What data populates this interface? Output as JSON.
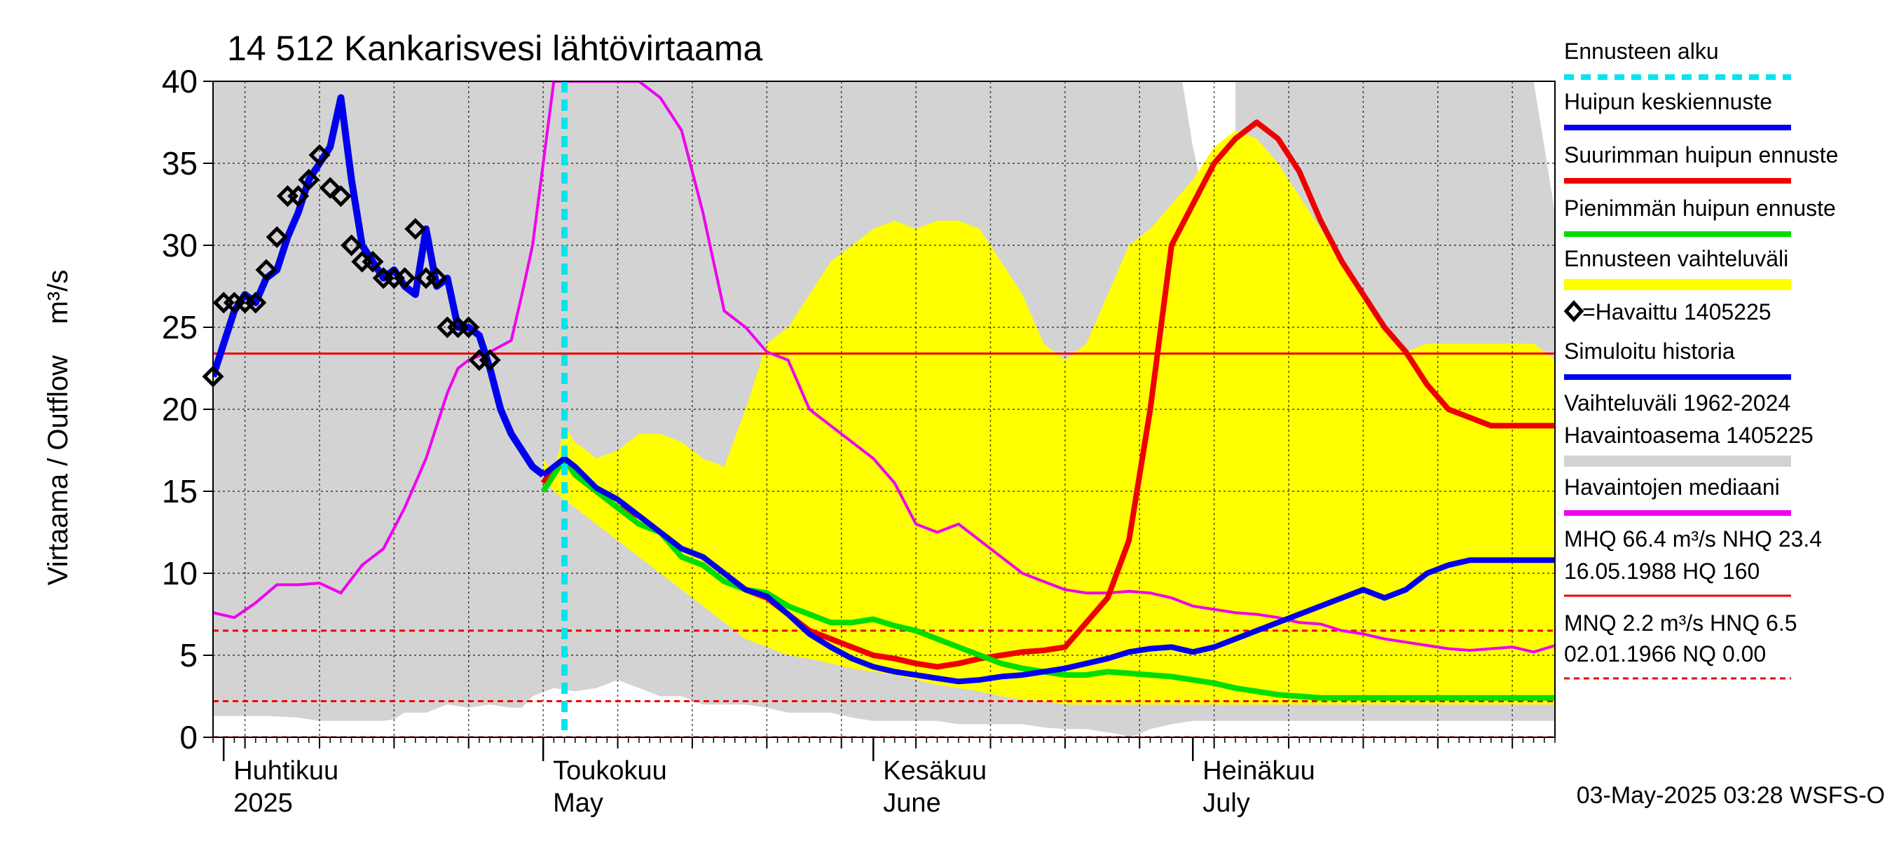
{
  "chart_data": {
    "type": "line",
    "title": "14 512 Kankarisvesi lähtövirtaama",
    "ylabel": "Virtaama / Outflow    m³/s",
    "ylim": [
      0,
      40
    ],
    "yticks": [
      0,
      5,
      10,
      15,
      20,
      25,
      30,
      35,
      40
    ],
    "x_start": "2025-03-31",
    "x_end": "2025-08-04",
    "month_labels": [
      {
        "date": "2025-04-01",
        "fi": "Huhtikuu",
        "en": "2025"
      },
      {
        "date": "2025-05-01",
        "fi": "Toukokuu",
        "en": "May"
      },
      {
        "date": "2025-06-01",
        "fi": "Kesäkuu",
        "en": "June"
      },
      {
        "date": "2025-07-01",
        "fi": "Heinäkuu",
        "en": "July"
      }
    ],
    "forecast_start": "2025-05-03",
    "timestamp": "03-May-2025 03:28 WSFS-O",
    "colors": {
      "forecast_start": "#00e5ee",
      "mean_forecast": "#0000ee",
      "max_forecast": "#ee0000",
      "min_forecast": "#00dd00",
      "forecast_range": "#ffff00",
      "simulated": "#0000ee",
      "hist_range": "#d3d3d3",
      "median": "#ee00ee",
      "ref_line": "#ee0000"
    },
    "legend": {
      "forecast_start": "Ennusteen alku",
      "mean_forecast": "Huipun keskiennuste",
      "max_forecast": "Suurimman huipun ennuste",
      "min_forecast": "Pienimmän huipun ennuste",
      "forecast_range": "Ennusteen vaihteluväli",
      "observed": "=Havaittu 1405225",
      "simulated": "Simuloitu historia",
      "hist_range_1": "Vaihteluväli 1962-2024",
      "hist_range_2": " Havaintoasema 1405225",
      "median": "Havaintojen mediaani",
      "mhq_1": "MHQ 66.4 m³/s NHQ 23.4",
      "mhq_2": "16.05.1988 HQ  160",
      "mnq_1": "MNQ  2.2 m³/s HNQ  6.5",
      "mnq_2": "02.01.1966 NQ 0.00"
    },
    "reference_lines": [
      {
        "name": "NHQ",
        "value": 23.4,
        "style": "solid"
      },
      {
        "name": "HNQ",
        "value": 6.5,
        "style": "dashed"
      },
      {
        "name": "MNQ",
        "value": 2.2,
        "style": "dashed"
      },
      {
        "name": "NQ",
        "value": 0.0,
        "style": "dashed"
      }
    ],
    "series": {
      "hist_range": {
        "x": [
          0,
          2,
          5,
          8,
          10,
          12,
          15,
          16,
          17,
          18,
          20,
          22,
          24,
          26,
          28,
          29,
          30,
          32,
          34,
          36,
          38,
          40,
          42,
          44,
          46,
          48,
          50,
          52,
          54,
          56,
          58,
          60,
          62,
          64,
          66,
          68,
          70,
          72,
          74,
          76,
          78,
          80,
          82,
          84,
          85,
          86,
          87,
          88,
          90,
          92,
          94,
          96,
          98,
          100,
          102,
          104,
          106,
          108,
          110,
          112,
          113,
          114,
          115,
          116,
          118,
          120,
          122,
          124,
          126
        ],
        "upper": [
          40,
          40,
          40,
          40,
          40,
          40,
          40,
          40,
          40,
          40,
          40,
          40,
          40,
          40,
          40,
          40,
          40,
          40,
          40,
          40,
          40,
          40,
          40,
          40,
          40,
          40,
          40,
          40,
          40,
          40,
          40,
          40,
          40,
          40,
          40,
          40,
          40,
          40,
          40,
          40,
          40,
          40,
          40,
          40,
          40,
          40,
          40,
          40,
          40,
          40,
          40,
          40,
          40,
          40,
          40,
          40,
          40,
          40,
          40,
          40,
          40,
          40,
          40,
          40,
          40,
          40,
          40,
          40,
          32
        ],
        "lower": [
          1.3,
          1.3,
          1.3,
          1.2,
          1.0,
          1.0,
          1.0,
          1.0,
          1.1,
          1.5,
          1.5,
          2.0,
          1.8,
          2.0,
          1.8,
          1.8,
          2.5,
          3.0,
          2.8,
          3.0,
          3.5,
          3.0,
          2.5,
          2.5,
          2.0,
          2.0,
          2.0,
          1.8,
          1.5,
          1.5,
          1.5,
          1.2,
          1.0,
          1.0,
          1.0,
          1.0,
          0.8,
          0.8,
          0.8,
          0.8,
          0.6,
          0.5,
          0.5,
          0.3,
          0.2,
          0.0,
          0.2,
          0.5,
          0.8,
          1.0,
          1.0,
          1.0,
          1.0,
          1.0,
          1.0,
          1.0,
          1.0,
          1.0,
          1.0,
          1.0,
          1.0,
          1.0,
          1.0,
          1.0,
          1.0,
          1.0,
          1.0,
          1.0,
          1.0
        ],
        "white_gap_x": [
          91,
          92,
          93,
          94,
          95,
          96
        ],
        "white_gap_upper": [
          40,
          36,
          33,
          32,
          31,
          30
        ]
      },
      "forecast_range": {
        "x": [
          31,
          32,
          33,
          34,
          36,
          38,
          40,
          42,
          44,
          46,
          48,
          50,
          52,
          54,
          56,
          58,
          60,
          62,
          64,
          66,
          68,
          70,
          72,
          74,
          76,
          78,
          80,
          82,
          84,
          86,
          88,
          90,
          92,
          94,
          96,
          98,
          100,
          102,
          104,
          106,
          108,
          110,
          112,
          114,
          116,
          118,
          120,
          122,
          124,
          126
        ],
        "upper": [
          17,
          16,
          19,
          18,
          17,
          17.5,
          18.5,
          18.5,
          18,
          17,
          16.5,
          20,
          24,
          25,
          27,
          29,
          30,
          31,
          31.5,
          31,
          31.5,
          31.5,
          31,
          29,
          27,
          24,
          23,
          24,
          27,
          30,
          31,
          32.5,
          34,
          36,
          37,
          36.5,
          35,
          33,
          31,
          29,
          27,
          25,
          23.5,
          24,
          24,
          24,
          24,
          24,
          24,
          23
        ],
        "lower": [
          16,
          15,
          14.5,
          14,
          13,
          12,
          11,
          10,
          9,
          8,
          7,
          6,
          5.5,
          5,
          4.8,
          4.5,
          4.2,
          4,
          3.8,
          3.5,
          3.2,
          3,
          2.8,
          2.5,
          2.3,
          2.2,
          2.0,
          2.0,
          2.0,
          2.0,
          2.0,
          2.0,
          2.0,
          2.0,
          2.0,
          2.0,
          2.0,
          2.0,
          2.0,
          2.0,
          2.0,
          2.0,
          2.0,
          2.0,
          2.0,
          2.0,
          2.0,
          2.0,
          2.0,
          2.0
        ]
      },
      "median": {
        "x": [
          0,
          2,
          4,
          6,
          8,
          10,
          12,
          14,
          16,
          18,
          20,
          22,
          23,
          24,
          26,
          28,
          29,
          30,
          31,
          32,
          33,
          34,
          36,
          38,
          39,
          40,
          42,
          44,
          46,
          48,
          50,
          52,
          54,
          56,
          58,
          60,
          62,
          64,
          66,
          68,
          70,
          72,
          74,
          76,
          78,
          80,
          82,
          84,
          86,
          88,
          90,
          92,
          94,
          96,
          98,
          100,
          102,
          104,
          106,
          108,
          110,
          112,
          114,
          116,
          118,
          120,
          122,
          124,
          126
        ],
        "y": [
          7.6,
          7.3,
          8.2,
          9.3,
          9.3,
          9.4,
          8.8,
          10.5,
          11.5,
          14,
          17,
          21,
          22.5,
          23,
          23.5,
          24.2,
          27,
          30,
          35,
          40,
          40,
          40,
          40,
          40,
          40,
          40,
          39,
          37,
          32,
          26,
          25,
          23.5,
          23,
          20,
          19,
          18,
          17,
          15.5,
          13,
          12.5,
          13,
          12,
          11,
          10,
          9.5,
          9,
          8.8,
          8.8,
          8.9,
          8.8,
          8.5,
          8,
          7.8,
          7.6,
          7.5,
          7.3,
          7,
          6.9,
          6.5,
          6.3,
          6.0,
          5.8,
          5.6,
          5.4,
          5.3,
          5.4,
          5.5,
          5.2,
          5.6
        ]
      },
      "max_forecast": {
        "x": [
          31,
          32,
          33,
          34,
          36,
          38,
          40,
          42,
          44,
          46,
          48,
          50,
          52,
          54,
          56,
          58,
          60,
          62,
          64,
          66,
          68,
          70,
          72,
          74,
          76,
          78,
          80,
          82,
          84,
          86,
          88,
          90,
          92,
          94,
          96,
          98,
          100,
          102,
          104,
          106,
          108,
          110,
          112,
          114,
          116,
          118,
          120,
          122,
          124,
          126
        ],
        "y": [
          15.5,
          16.5,
          17,
          16,
          15,
          14,
          13.5,
          12.5,
          11.5,
          11,
          10,
          9,
          8.5,
          7.5,
          6.5,
          6,
          5.5,
          5,
          4.8,
          4.5,
          4.3,
          4.5,
          4.8,
          5,
          5.2,
          5.3,
          5.5,
          7,
          8.5,
          12,
          20,
          30,
          32.5,
          35,
          36.5,
          37.5,
          36.5,
          34.5,
          31.5,
          29,
          27,
          25,
          23.5,
          21.5,
          20,
          19.5,
          19,
          19,
          19,
          19
        ]
      },
      "min_forecast": {
        "x": [
          31,
          32,
          33,
          34,
          36,
          38,
          40,
          42,
          44,
          46,
          48,
          50,
          52,
          54,
          56,
          58,
          60,
          62,
          64,
          66,
          68,
          70,
          72,
          74,
          76,
          78,
          80,
          82,
          84,
          86,
          88,
          90,
          92,
          94,
          96,
          98,
          100,
          102,
          104,
          106,
          108,
          110,
          112,
          114,
          116,
          118,
          120,
          122,
          124,
          126
        ],
        "y": [
          15,
          16,
          17,
          16,
          15,
          14,
          13,
          12.5,
          11,
          10.5,
          9.5,
          9,
          8.8,
          8,
          7.5,
          7,
          7,
          7.2,
          6.8,
          6.5,
          6,
          5.5,
          5,
          4.5,
          4.2,
          4.0,
          3.8,
          3.8,
          4,
          3.9,
          3.8,
          3.7,
          3.5,
          3.3,
          3.0,
          2.8,
          2.6,
          2.5,
          2.4,
          2.4,
          2.4,
          2.4,
          2.4,
          2.4,
          2.4,
          2.4,
          2.4,
          2.4,
          2.4,
          2.4
        ]
      },
      "mean_forecast": {
        "x": [
          31,
          32,
          33,
          34,
          36,
          38,
          40,
          42,
          44,
          46,
          48,
          50,
          52,
          54,
          56,
          58,
          60,
          62,
          64,
          66,
          68,
          70,
          72,
          74,
          76,
          78,
          80,
          82,
          84,
          86,
          88,
          90,
          92,
          94,
          96,
          98,
          100,
          102,
          104,
          106,
          108,
          110,
          112,
          114,
          116,
          118,
          120,
          122,
          124,
          126
        ],
        "y": [
          16,
          16.5,
          17,
          16.5,
          15.2,
          14.5,
          13.5,
          12.5,
          11.5,
          11,
          10,
          9,
          8.6,
          7.5,
          6.3,
          5.5,
          4.8,
          4.3,
          4,
          3.8,
          3.6,
          3.4,
          3.5,
          3.7,
          3.8,
          4,
          4.2,
          4.5,
          4.8,
          5.2,
          5.4,
          5.5,
          5.2,
          5.5,
          6,
          6.5,
          7,
          7.5,
          8,
          8.5,
          9,
          8.5,
          9,
          10,
          10.5,
          10.8,
          10.8,
          10.8,
          10.8,
          10.8
        ]
      },
      "simulated": {
        "x": [
          0,
          1,
          2,
          3,
          4,
          5,
          6,
          7,
          8,
          9,
          10,
          11,
          12,
          13,
          14,
          15,
          16,
          17,
          18,
          19,
          20,
          21,
          22,
          23,
          24,
          25,
          26,
          27,
          28,
          29,
          30,
          31
        ],
        "y": [
          22,
          24,
          26,
          27,
          26.5,
          28,
          28.5,
          30.5,
          32,
          34,
          35,
          36,
          39,
          34,
          30,
          29,
          28,
          28.5,
          27.5,
          27,
          31,
          27.5,
          28,
          25,
          25,
          24.5,
          22.5,
          20,
          18.5,
          17.5,
          16.5,
          16
        ]
      },
      "observed": {
        "x": [
          0,
          1,
          2,
          3,
          4,
          5,
          6,
          7,
          8,
          9,
          10,
          11,
          12,
          13,
          14,
          15,
          16,
          17,
          18,
          19,
          20,
          21,
          22,
          23,
          24,
          25,
          26
        ],
        "y": [
          22,
          26.5,
          26.5,
          26.5,
          26.5,
          28.5,
          30.5,
          33,
          33,
          34,
          35.5,
          33.5,
          33,
          30,
          29,
          29,
          28,
          28,
          28,
          31,
          28,
          28,
          25,
          25,
          25,
          23,
          23
        ]
      }
    }
  }
}
